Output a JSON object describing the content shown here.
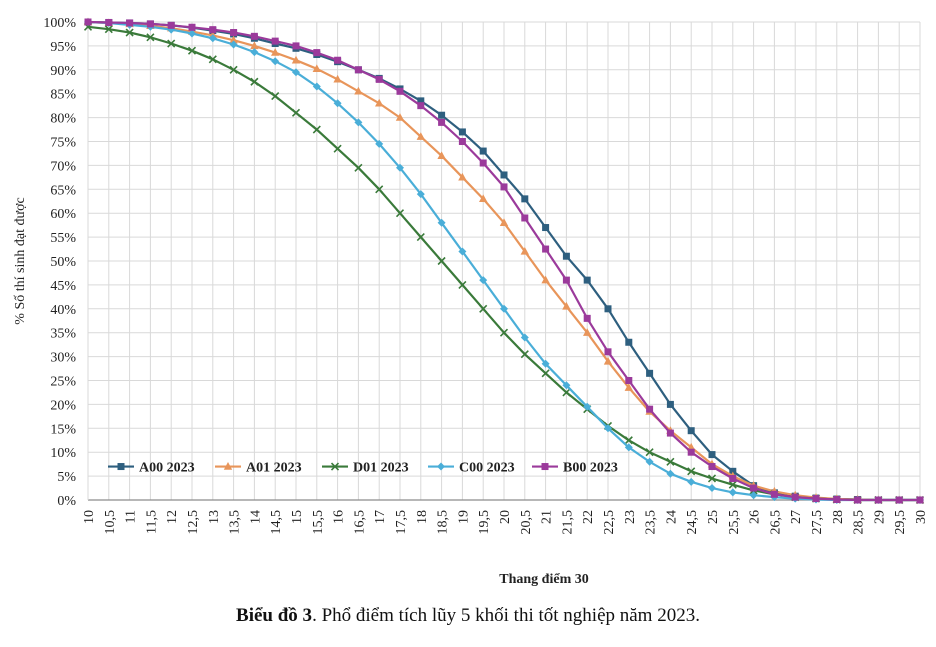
{
  "chart_data": {
    "type": "line",
    "ylabel": "% Số thí sinh đạt được",
    "xlabel": "Thang điểm 30",
    "xlim": [
      10,
      30
    ],
    "ylim": [
      0,
      100
    ],
    "xticks": [
      "10",
      "10,5",
      "11",
      "11,5",
      "12",
      "12,5",
      "13",
      "13,5",
      "14",
      "14,5",
      "15",
      "15,5",
      "16",
      "16,5",
      "17",
      "17,5",
      "18",
      "18,5",
      "19",
      "19,5",
      "20",
      "20,5",
      "21",
      "21,5",
      "22",
      "22,5",
      "23",
      "23,5",
      "24",
      "24,5",
      "25",
      "25,5",
      "26",
      "26,5",
      "27",
      "27,5",
      "28",
      "28,5",
      "29",
      "29,5",
      "30"
    ],
    "yticks": [
      "0%",
      "5%",
      "10%",
      "15%",
      "20%",
      "25%",
      "30%",
      "35%",
      "40%",
      "45%",
      "50%",
      "55%",
      "60%",
      "65%",
      "70%",
      "75%",
      "80%",
      "85%",
      "90%",
      "95%",
      "100%"
    ],
    "grid": true,
    "legend_position": "bottom-left",
    "series": [
      {
        "name": "A00 2023",
        "color": "#2e5f7f",
        "marker": "square",
        "x": [
          10,
          10.5,
          11,
          11.5,
          12,
          12.5,
          13,
          13.5,
          14,
          14.5,
          15,
          15.5,
          16,
          16.5,
          17,
          17.5,
          18,
          18.5,
          19,
          19.5,
          20,
          20.5,
          21,
          21.5,
          22,
          22.5,
          23,
          23.5,
          24,
          24.5,
          25,
          25.5,
          26,
          26.5,
          27,
          27.5,
          28,
          28.5,
          29,
          29.5,
          30
        ],
        "values": [
          100,
          99.9,
          99.8,
          99.6,
          99.3,
          98.8,
          98.2,
          97.5,
          96.6,
          95.5,
          94.5,
          93.2,
          91.7,
          90,
          88.2,
          86,
          83.5,
          80.5,
          77,
          73,
          68,
          63,
          57,
          51,
          46,
          40,
          33,
          26.5,
          20,
          14.5,
          9.5,
          6,
          3,
          1.5,
          0.8,
          0.4,
          0.2,
          0.1,
          0,
          0,
          0
        ]
      },
      {
        "name": "A01 2023",
        "color": "#e8955a",
        "marker": "triangle",
        "x": [
          10,
          10.5,
          11,
          11.5,
          12,
          12.5,
          13,
          13.5,
          14,
          14.5,
          15,
          15.5,
          16,
          16.5,
          17,
          17.5,
          18,
          18.5,
          19,
          19.5,
          20,
          20.5,
          21,
          21.5,
          22,
          22.5,
          23,
          23.5,
          24,
          24.5,
          25,
          25.5,
          26,
          26.5,
          27,
          27.5,
          28,
          28.5,
          29,
          29.5,
          30
        ],
        "values": [
          100,
          99.8,
          99.6,
          99.2,
          98.7,
          98,
          97.2,
          96.2,
          95,
          93.6,
          92,
          90.2,
          88,
          85.5,
          83,
          80,
          76,
          72,
          67.5,
          63,
          58,
          52,
          46,
          40.5,
          35,
          29,
          23.5,
          18.5,
          14.5,
          11,
          7.5,
          5,
          3,
          1.8,
          1,
          0.5,
          0.2,
          0.1,
          0,
          0,
          0
        ]
      },
      {
        "name": "D01 2023",
        "color": "#3a7a3a",
        "marker": "star",
        "x": [
          10,
          10.5,
          11,
          11.5,
          12,
          12.5,
          13,
          13.5,
          14,
          14.5,
          15,
          15.5,
          16,
          16.5,
          17,
          17.5,
          18,
          18.5,
          19,
          19.5,
          20,
          20.5,
          21,
          21.5,
          22,
          22.5,
          23,
          23.5,
          24,
          24.5,
          25,
          25.5,
          26,
          26.5,
          27,
          27.5,
          28,
          28.5,
          29,
          29.5,
          30
        ],
        "values": [
          99,
          98.5,
          97.8,
          96.8,
          95.5,
          94,
          92.2,
          90,
          87.5,
          84.5,
          81,
          77.5,
          73.5,
          69.5,
          65,
          60,
          55,
          50,
          45,
          40,
          35,
          30.5,
          26.5,
          22.5,
          19,
          15.5,
          12.5,
          10,
          8,
          6,
          4.5,
          3.2,
          2,
          1.2,
          0.6,
          0.3,
          0.1,
          0,
          0,
          0,
          0
        ]
      },
      {
        "name": "C00 2023",
        "color": "#4aaed8",
        "marker": "diamond",
        "x": [
          10,
          10.5,
          11,
          11.5,
          12,
          12.5,
          13,
          13.5,
          14,
          14.5,
          15,
          15.5,
          16,
          16.5,
          17,
          17.5,
          18,
          18.5,
          19,
          19.5,
          20,
          20.5,
          21,
          21.5,
          22,
          22.5,
          23,
          23.5,
          24,
          24.5,
          25,
          25.5,
          26,
          26.5,
          27,
          27.5,
          28,
          28.5,
          29,
          29.5,
          30
        ],
        "values": [
          100,
          99.8,
          99.4,
          99,
          98.4,
          97.6,
          96.6,
          95.3,
          93.7,
          91.8,
          89.5,
          86.5,
          83,
          79,
          74.5,
          69.5,
          64,
          58,
          52,
          46,
          40,
          34,
          28.5,
          24,
          19.5,
          15,
          11,
          8,
          5.5,
          3.8,
          2.5,
          1.6,
          1,
          0.6,
          0.3,
          0.1,
          0,
          0,
          0,
          0,
          0
        ]
      },
      {
        "name": "B00 2023",
        "color": "#9b3a9b",
        "marker": "square",
        "x": [
          10,
          10.5,
          11,
          11.5,
          12,
          12.5,
          13,
          13.5,
          14,
          14.5,
          15,
          15.5,
          16,
          16.5,
          17,
          17.5,
          18,
          18.5,
          19,
          19.5,
          20,
          20.5,
          21,
          21.5,
          22,
          22.5,
          23,
          23.5,
          24,
          24.5,
          25,
          25.5,
          26,
          26.5,
          27,
          27.5,
          28,
          28.5,
          29,
          29.5,
          30
        ],
        "values": [
          100,
          99.9,
          99.8,
          99.6,
          99.3,
          98.9,
          98.4,
          97.8,
          97,
          96,
          95,
          93.6,
          92,
          90,
          88,
          85.5,
          82.5,
          79,
          75,
          70.5,
          65.5,
          59,
          52.5,
          46,
          38,
          31,
          25,
          19,
          14,
          10,
          7,
          4.5,
          2.5,
          1.2,
          0.6,
          0.3,
          0.1,
          0,
          0,
          0,
          0
        ]
      }
    ]
  },
  "caption": {
    "bold": "Biểu đồ 3",
    "rest": ". Phổ điểm tích lũy 5 khối thi tốt nghiệp năm 2023."
  }
}
